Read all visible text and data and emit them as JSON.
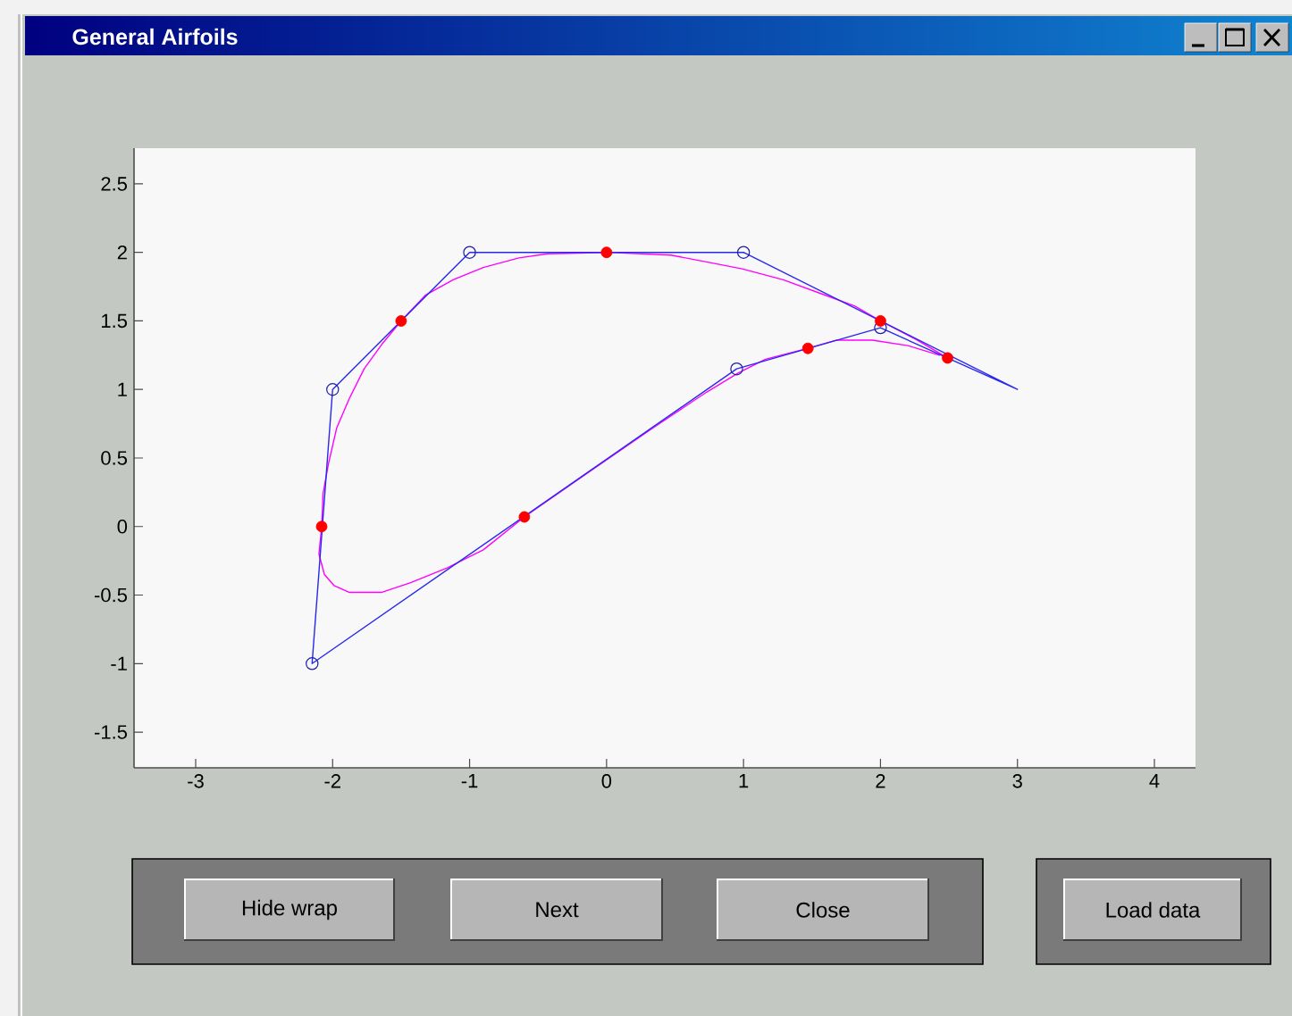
{
  "chart_data": {
    "type": "line",
    "title": "General Airfoils",
    "xlim": [
      -3.45,
      4.3
    ],
    "ylim": [
      -1.76,
      2.76
    ],
    "xticks": [
      -3,
      -2,
      -1,
      0,
      1,
      2,
      3,
      4
    ],
    "yticks": [
      -1.5,
      -1,
      -0.5,
      0,
      0.5,
      1,
      1.5,
      2,
      2.5
    ],
    "series": [
      {
        "color": "#ff00ff",
        "x": [
          2.49,
          2.25,
          2,
          1.81,
          1.59,
          1.29,
          0.99,
          0.73,
          0.47,
          0,
          -0.43,
          -0.64,
          -0.9,
          -1.12,
          -1.32,
          -1.5,
          -1.64,
          -1.77,
          -1.88,
          -1.97,
          -2.03,
          -2.07,
          -2.08,
          -2.1,
          -2.06,
          -1.99,
          -1.88,
          -1.64,
          -1.43,
          -1.16,
          -0.9,
          -0.6,
          -0.14,
          0.34,
          0.73,
          0.96,
          1.16,
          1.47,
          1.68,
          1.94,
          2.2,
          2.43
        ],
        "values": [
          1.23,
          1.37,
          1.5,
          1.61,
          1.69,
          1.8,
          1.88,
          1.93,
          1.98,
          2,
          1.99,
          1.96,
          1.89,
          1.8,
          1.69,
          1.5,
          1.33,
          1.15,
          0.93,
          0.72,
          0.46,
          0.24,
          0,
          -0.2,
          -0.35,
          -0.43,
          -0.48,
          -0.48,
          -0.41,
          -0.3,
          -0.17,
          0.07,
          0.39,
          0.72,
          0.98,
          1.12,
          1.22,
          1.3,
          1.36,
          1.36,
          1.32,
          1.25
        ]
      },
      {
        "color": "#2828f0",
        "marker": "circle",
        "x": [
          1,
          -1,
          -2,
          -2.15,
          0.95,
          2
        ],
        "values": [
          2,
          2,
          1,
          -1,
          1.15,
          1.45
        ]
      },
      {
        "color": "#2828f0",
        "x": [
          1,
          3,
          2
        ],
        "values": [
          2,
          1,
          1.45
        ]
      },
      {
        "type": "scatter",
        "color": "#ff0000",
        "marker": "circle",
        "x": [
          0,
          -1.5,
          -2.08,
          -0.6,
          1.47,
          2,
          2.49
        ],
        "values": [
          2,
          1.5,
          0,
          0.07,
          1.3,
          1.5,
          1.23
        ]
      }
    ],
    "annotations": [
      "Hide wrap",
      "Next",
      "Close",
      "Load data"
    ]
  }
}
